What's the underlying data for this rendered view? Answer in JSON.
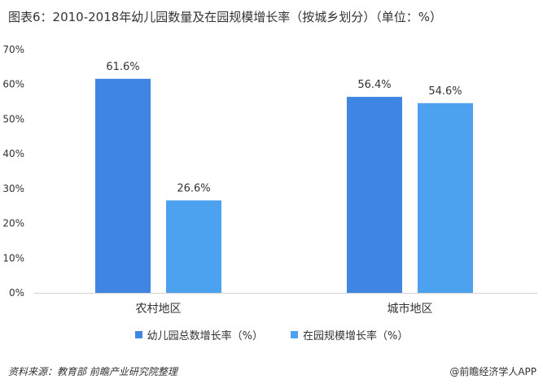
{
  "title": "图表6：2010-2018年幼儿园数量及在园规模增长率（按城乡划分）（单位：%）",
  "chart_data": {
    "type": "bar",
    "categories": [
      "农村地区",
      "城市地区"
    ],
    "series": [
      {
        "name": "幼儿园总数增长率（%）",
        "values": [
          61.6,
          56.4
        ],
        "labels": [
          "61.6%",
          "56.4%"
        ],
        "color": "#3e86e2"
      },
      {
        "name": "在园规模增长率（%）",
        "values": [
          26.6,
          54.6
        ],
        "labels": [
          "26.6%",
          "54.6%"
        ],
        "color": "#4ca2ee"
      }
    ],
    "ylim": [
      0,
      70
    ],
    "yticks": [
      "0%",
      "10%",
      "20%",
      "30%",
      "40%",
      "50%",
      "60%",
      "70%"
    ],
    "grid": false,
    "legend_position": "bottom"
  },
  "footer": {
    "source": "资料来源：教育部 前瞻产业研究院整理",
    "brand": "@前瞻经济学人APP"
  }
}
